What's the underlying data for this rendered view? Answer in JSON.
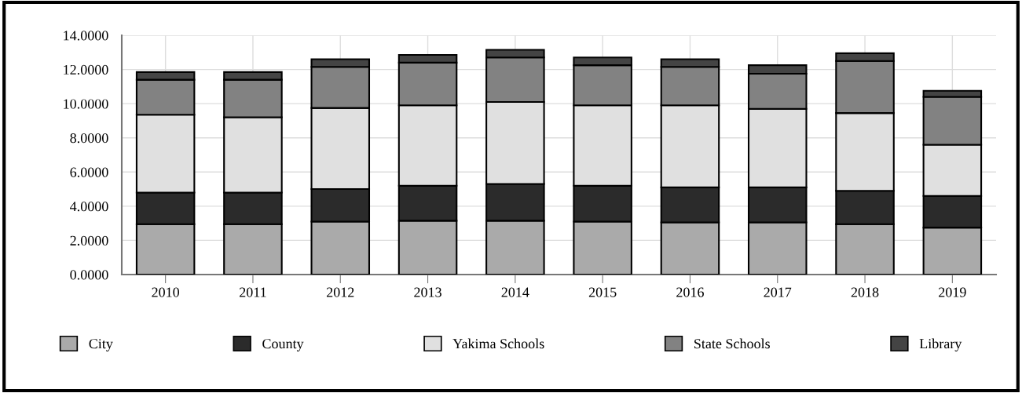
{
  "chart_data": {
    "type": "bar",
    "stacked": true,
    "categories": [
      "2010",
      "2011",
      "2012",
      "2013",
      "2014",
      "2015",
      "2016",
      "2017",
      "2018",
      "2019"
    ],
    "series": [
      {
        "name": "City",
        "color": "#aaaaaa",
        "values": [
          2.95,
          2.95,
          3.1,
          3.15,
          3.15,
          3.1,
          3.05,
          3.05,
          2.95,
          2.75
        ]
      },
      {
        "name": "County",
        "color": "#2b2b2b",
        "values": [
          1.85,
          1.85,
          1.9,
          2.05,
          2.15,
          2.1,
          2.05,
          2.05,
          1.95,
          1.85
        ]
      },
      {
        "name": "Yakima Schools",
        "color": "#e0e0e0",
        "values": [
          4.55,
          4.4,
          4.75,
          4.7,
          4.8,
          4.7,
          4.8,
          4.6,
          4.55,
          3.0
        ]
      },
      {
        "name": "State Schools",
        "color": "#828282",
        "values": [
          2.05,
          2.2,
          2.4,
          2.5,
          2.6,
          2.35,
          2.25,
          2.05,
          3.05,
          2.8
        ]
      },
      {
        "name": "Library",
        "color": "#444444",
        "values": [
          0.45,
          0.45,
          0.45,
          0.45,
          0.45,
          0.45,
          0.45,
          0.5,
          0.45,
          0.35
        ]
      }
    ],
    "ylim": [
      0,
      14
    ],
    "yticks": [
      {
        "value": 0,
        "label": "0.0000"
      },
      {
        "value": 2,
        "label": "2.0000"
      },
      {
        "value": 4,
        "label": "4.0000"
      },
      {
        "value": 6,
        "label": "6.0000"
      },
      {
        "value": 8,
        "label": "8.0000"
      },
      {
        "value": 10,
        "label": "10.0000"
      },
      {
        "value": 12,
        "label": "12.0000"
      },
      {
        "value": 14,
        "label": "14.0000"
      }
    ],
    "grid": true,
    "legend": "bottom"
  }
}
